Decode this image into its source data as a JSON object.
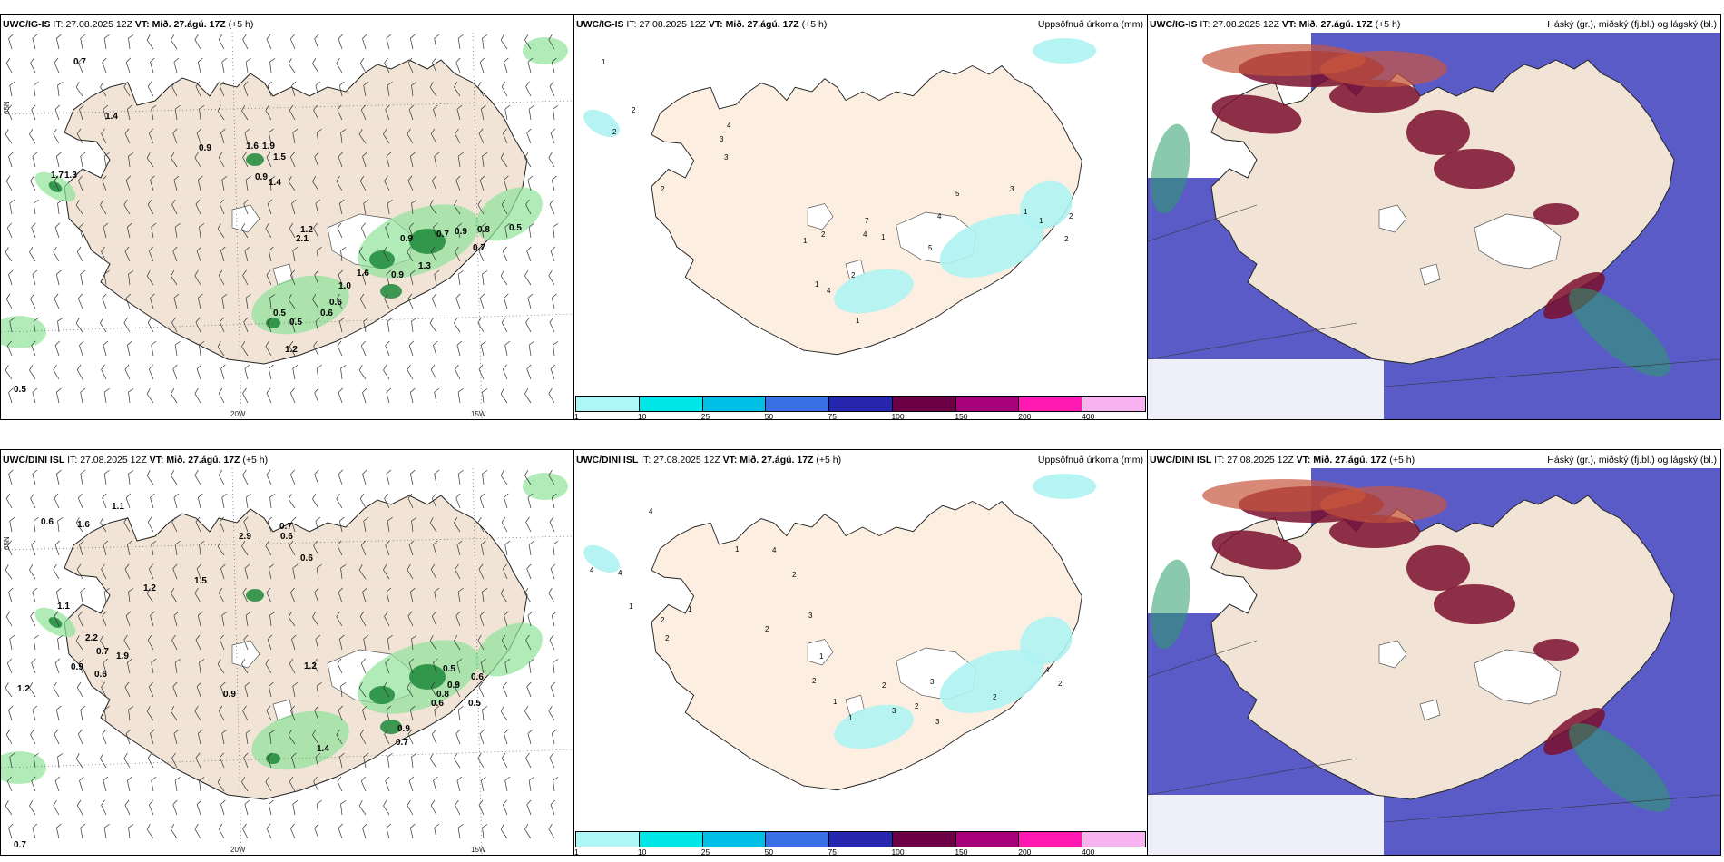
{
  "colors": {
    "land": "#f1e4d6",
    "land_mid": "#fcefe2",
    "precip_green": "#8fe39a",
    "precip_dark": "#1d8a3a",
    "cyan": "#aef3f3",
    "low_cloud": "#5b5bc8",
    "mid_cloud": "#7a0f2e",
    "high_cloud": "#c8553d"
  },
  "panels": {
    "top_left": {
      "model": "UWC/IG-IS",
      "it_label": "IT:",
      "it": "27.08.2025 12Z",
      "vt_label": "VT:",
      "vt": "Mið. 27.ágú. 17Z",
      "lead": "(+5 h)",
      "right_title": "",
      "lon_labels": [
        "20W",
        "15W"
      ],
      "lat_label": "65N",
      "values": [
        "0.7",
        "1.4",
        "0.9",
        "1.6",
        "1.9",
        "1.5",
        "1.7",
        "1.3",
        "0.9",
        "1.4",
        "1.2",
        "2.1",
        "1.6",
        "0.9",
        "0.7",
        "0.9",
        "0.8",
        "0.7",
        "0.5",
        "1.3",
        "0.9",
        "1.0",
        "0.6",
        "0.6",
        "0.5",
        "0.5",
        "1.2",
        "0.5"
      ]
    },
    "top_mid": {
      "model": "UWC/IG-IS",
      "it_label": "IT:",
      "it": "27.08.2025 12Z",
      "vt_label": "VT:",
      "vt": "Mið. 27.ágú. 17Z",
      "lead": "(+5 h)",
      "right_title": "Uppsöfnuð úrkoma (mm)",
      "values": [
        "1",
        "2",
        "2",
        "4",
        "3",
        "3",
        "2",
        "7",
        "4",
        "1",
        "2",
        "1",
        "2",
        "1",
        "4",
        "3",
        "5",
        "4",
        "5",
        "1",
        "1",
        "2",
        "2",
        "1"
      ]
    },
    "top_right": {
      "model": "UWC/IG-IS",
      "it_label": "IT:",
      "it": "27.08.2025 12Z",
      "vt_label": "VT:",
      "vt": "Mið. 27.ágú. 17Z",
      "lead": "(+5 h)",
      "right_title": "Háský (gr.), miðský (fj.bl.) og lágský (bl.)"
    },
    "bot_left": {
      "model": "UWC/DINI ISL",
      "it_label": "IT:",
      "it": "27.08.2025 12Z",
      "vt_label": "VT:",
      "vt": "Mið. 27.ágú. 17Z",
      "lead": "(+5 h)",
      "right_title": "",
      "lon_labels": [
        "20W",
        "15W"
      ],
      "lat_label": "65N",
      "values": [
        "1.1",
        "0.6",
        "1.6",
        "2.9",
        "0.7",
        "0.6",
        "0.6",
        "1.5",
        "1.2",
        "1.1",
        "2.2",
        "0.7",
        "1.9",
        "0.9",
        "0.6",
        "1.2",
        "0.9",
        "1.2",
        "0.5",
        "0.9",
        "0.6",
        "0.6",
        "0.8",
        "0.5",
        "0.9",
        "0.7",
        "1.4",
        "0.7"
      ]
    },
    "bot_mid": {
      "model": "UWC/DINI ISL",
      "it_label": "IT:",
      "it": "27.08.2025 12Z",
      "vt_label": "VT:",
      "vt": "Mið. 27.ágú. 17Z",
      "lead": "(+5 h)",
      "right_title": "Uppsöfnuð úrkoma (mm)",
      "values": [
        "4",
        "4",
        "4",
        "2",
        "1",
        "1",
        "2",
        "1",
        "4",
        "2",
        "3",
        "2",
        "1",
        "2",
        "1",
        "1",
        "2",
        "3",
        "3",
        "2",
        "3",
        "2",
        "4",
        "2"
      ]
    },
    "bot_right": {
      "model": "UWC/DINI ISL",
      "it_label": "IT:",
      "it": "27.08.2025 12Z",
      "vt_label": "VT:",
      "vt": "Mið. 27.ágú. 17Z",
      "lead": "(+5 h)",
      "right_title": "Háský (gr.), miðský (fj.bl.) og lágský (bl.)"
    }
  },
  "colorbar": {
    "labels": [
      "1",
      "10",
      "25",
      "50",
      "75",
      "100",
      "150",
      "200",
      "400"
    ],
    "colors": [
      "#aef7f7",
      "#00e6e6",
      "#00bfe6",
      "#3a6ee6",
      "#2626b0",
      "#6e0046",
      "#a6007a",
      "#ff19b0",
      "#f7b2f0"
    ]
  }
}
